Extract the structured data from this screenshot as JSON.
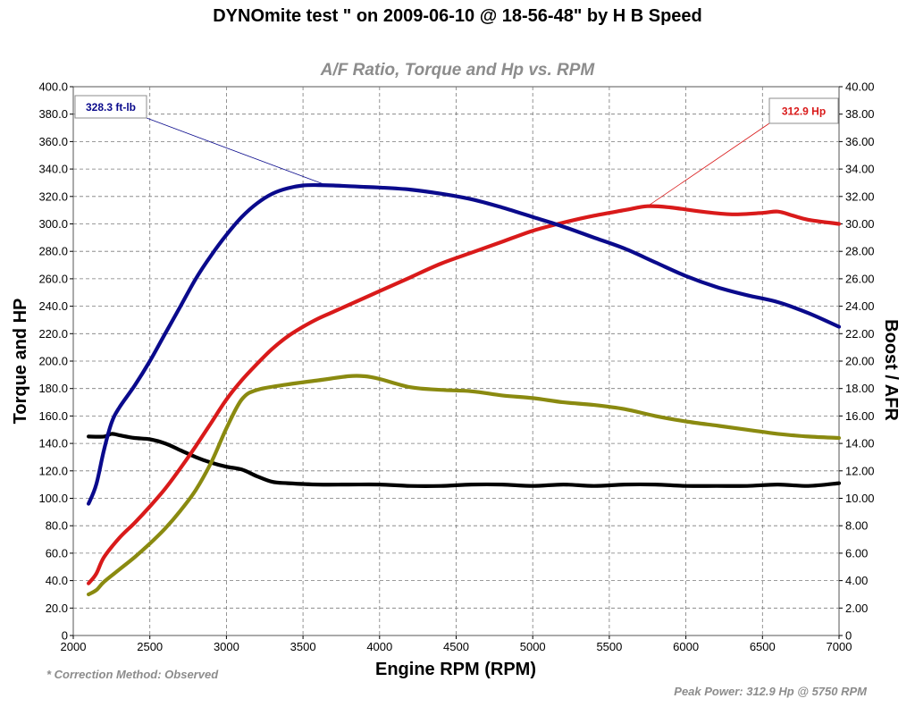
{
  "chart_data": {
    "type": "line",
    "title": "DYNOmite test \" on 2009-06-10 @ 18-56-48\" by H B Speed",
    "subtitle": "A/F Ratio, Torque and Hp vs. RPM",
    "xlabel": "Engine RPM (RPM)",
    "ylabel_left": "Torque and HP",
    "ylabel_right": "Boost / AFR",
    "xlim": [
      2000,
      7000
    ],
    "ylim_left": [
      0,
      400
    ],
    "ylim_right": [
      0,
      40
    ],
    "x_ticks": [
      "2000",
      "2500",
      "3000",
      "3500",
      "4000",
      "4500",
      "5000",
      "5500",
      "6000",
      "6500",
      "7000"
    ],
    "y_ticks_left": [
      "0",
      "20.0",
      "40.0",
      "60.0",
      "80.0",
      "100.0",
      "120.0",
      "140.0",
      "160.0",
      "180.0",
      "200.0",
      "220.0",
      "240.0",
      "260.0",
      "280.0",
      "300.0",
      "320.0",
      "340.0",
      "360.0",
      "380.0",
      "400.0"
    ],
    "y_ticks_right": [
      "0",
      "2.00",
      "4.00",
      "6.00",
      "8.00",
      "10.00",
      "12.00",
      "14.00",
      "16.00",
      "18.00",
      "20.00",
      "22.00",
      "24.00",
      "26.00",
      "28.00",
      "30.00",
      "32.00",
      "34.00",
      "36.00",
      "38.00",
      "40.00"
    ],
    "grid": true,
    "series": [
      {
        "name": "Torque",
        "color": "#0a0a8c",
        "axis": "left",
        "x": [
          2100,
          2150,
          2200,
          2250,
          2300,
          2400,
          2500,
          2600,
          2700,
          2800,
          2900,
          3000,
          3100,
          3200,
          3300,
          3400,
          3500,
          3600,
          3700,
          3800,
          3900,
          4000,
          4200,
          4400,
          4600,
          4800,
          5000,
          5200,
          5400,
          5600,
          5800,
          6000,
          6200,
          6400,
          6600,
          6800,
          7000
        ],
        "y": [
          96,
          110,
          135,
          155,
          166,
          182,
          200,
          220,
          240,
          260,
          277,
          292,
          305,
          315,
          322,
          326,
          328,
          328.3,
          328,
          327.5,
          327,
          326.5,
          325,
          322,
          318,
          312,
          305,
          298,
          290,
          282,
          272,
          262,
          254,
          248,
          243,
          235,
          225
        ]
      },
      {
        "name": "Horsepower",
        "color": "#d91a1a",
        "axis": "left",
        "x": [
          2100,
          2150,
          2200,
          2300,
          2400,
          2500,
          2600,
          2700,
          2800,
          2900,
          3000,
          3100,
          3200,
          3300,
          3400,
          3500,
          3600,
          3700,
          3800,
          4000,
          4200,
          4400,
          4600,
          4800,
          5000,
          5200,
          5400,
          5600,
          5750,
          5900,
          6100,
          6300,
          6500,
          6600,
          6700,
          6800,
          7000
        ],
        "y": [
          38,
          45,
          57,
          71,
          82,
          94,
          107,
          122,
          138,
          155,
          172,
          186,
          198,
          209,
          218,
          225,
          231,
          236,
          241,
          251,
          261,
          271,
          279,
          287,
          295,
          301,
          306,
          310,
          312.9,
          312,
          309,
          307,
          308,
          309,
          306,
          303,
          300
        ]
      },
      {
        "name": "Boost",
        "color": "#8a8a10",
        "axis": "right",
        "x": [
          2100,
          2150,
          2200,
          2300,
          2400,
          2500,
          2600,
          2700,
          2800,
          2900,
          3000,
          3100,
          3200,
          3400,
          3600,
          3800,
          3900,
          4000,
          4200,
          4400,
          4600,
          4800,
          5000,
          5200,
          5400,
          5600,
          5800,
          6000,
          6200,
          6400,
          6600,
          6800,
          7000
        ],
        "y": [
          3.0,
          3.3,
          3.9,
          4.8,
          5.7,
          6.7,
          7.8,
          9.1,
          10.6,
          12.6,
          15.1,
          17.2,
          17.9,
          18.3,
          18.6,
          18.9,
          18.9,
          18.7,
          18.1,
          17.9,
          17.8,
          17.5,
          17.3,
          17.0,
          16.8,
          16.5,
          16.0,
          15.6,
          15.3,
          15.0,
          14.7,
          14.5,
          14.4
        ]
      },
      {
        "name": "A/F Ratio",
        "color": "#000000",
        "axis": "right",
        "x": [
          2100,
          2200,
          2250,
          2300,
          2400,
          2500,
          2600,
          2700,
          2800,
          2900,
          3000,
          3100,
          3200,
          3300,
          3400,
          3600,
          3800,
          4000,
          4200,
          4400,
          4600,
          4800,
          5000,
          5200,
          5400,
          5600,
          5800,
          6000,
          6200,
          6400,
          6600,
          6800,
          7000
        ],
        "y": [
          14.5,
          14.5,
          14.7,
          14.6,
          14.4,
          14.3,
          14.0,
          13.5,
          13.0,
          12.6,
          12.3,
          12.1,
          11.6,
          11.2,
          11.1,
          11.0,
          11.0,
          11.0,
          10.9,
          10.9,
          11.0,
          11.0,
          10.9,
          11.0,
          10.9,
          11.0,
          11.0,
          10.9,
          10.9,
          10.9,
          11.0,
          10.9,
          11.1
        ]
      }
    ],
    "annotations": [
      {
        "label": "328.3 ft-lb",
        "series": "Torque",
        "x": 3650,
        "y": 328.3,
        "color": "#0a0a8c"
      },
      {
        "label": "312.9 Hp",
        "series": "Horsepower",
        "x": 5750,
        "y": 312.9,
        "color": "#d91a1a"
      }
    ],
    "footnote_left": "* Correction Method: Observed",
    "footnote_right": "Peak Power: 312.9 Hp @ 5750 RPM"
  }
}
